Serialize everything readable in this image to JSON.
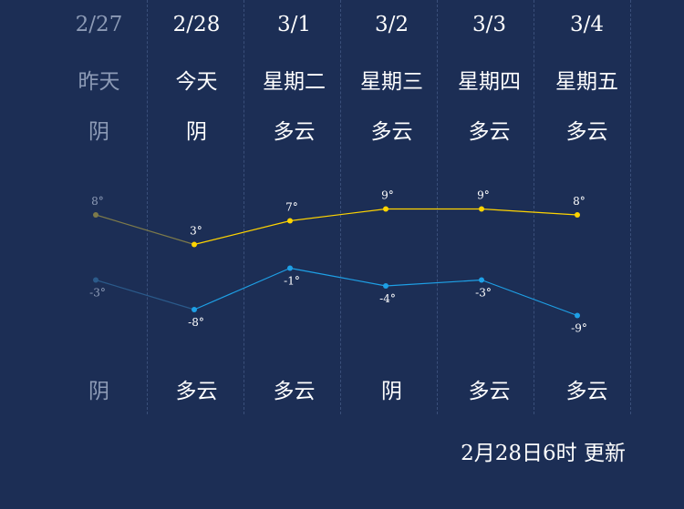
{
  "days": [
    {
      "date": "2/27",
      "weekday": "昨天",
      "cond_day": "阴",
      "cond_night": "阴",
      "high": "8°",
      "low": "-3°",
      "past": true
    },
    {
      "date": "2/28",
      "weekday": "今天",
      "cond_day": "阴",
      "cond_night": "多云",
      "high": "3°",
      "low": "-8°",
      "past": false
    },
    {
      "date": "3/1",
      "weekday": "星期二",
      "cond_day": "多云",
      "cond_night": "多云",
      "high": "7°",
      "low": "-1°",
      "past": false
    },
    {
      "date": "3/2",
      "weekday": "星期三",
      "cond_day": "多云",
      "cond_night": "阴",
      "high": "9°",
      "low": "-4°",
      "past": false
    },
    {
      "date": "3/3",
      "weekday": "星期四",
      "cond_day": "多云",
      "cond_night": "多云",
      "high": "9°",
      "low": "-3°",
      "past": false
    },
    {
      "date": "3/4",
      "weekday": "星期五",
      "cond_day": "多云",
      "cond_night": "多云",
      "high": "8°",
      "low": "-9°",
      "past": false
    }
  ],
  "chart_data": {
    "type": "line",
    "categories": [
      "2/27",
      "2/28",
      "3/1",
      "3/2",
      "3/3",
      "3/4"
    ],
    "series": [
      {
        "values": [
          8,
          3,
          7,
          9,
          9,
          8
        ],
        "color": "#ffd400"
      },
      {
        "values": [
          -3,
          -8,
          -1,
          -4,
          -3,
          -9
        ],
        "color": "#1ea0e6"
      }
    ]
  },
  "colors": {
    "background": "#1c2e55",
    "high_line": "#ffd400",
    "low_line": "#1ea0e6",
    "past_text": "#8d9bb6"
  },
  "updated": "2月28日6时 更新"
}
